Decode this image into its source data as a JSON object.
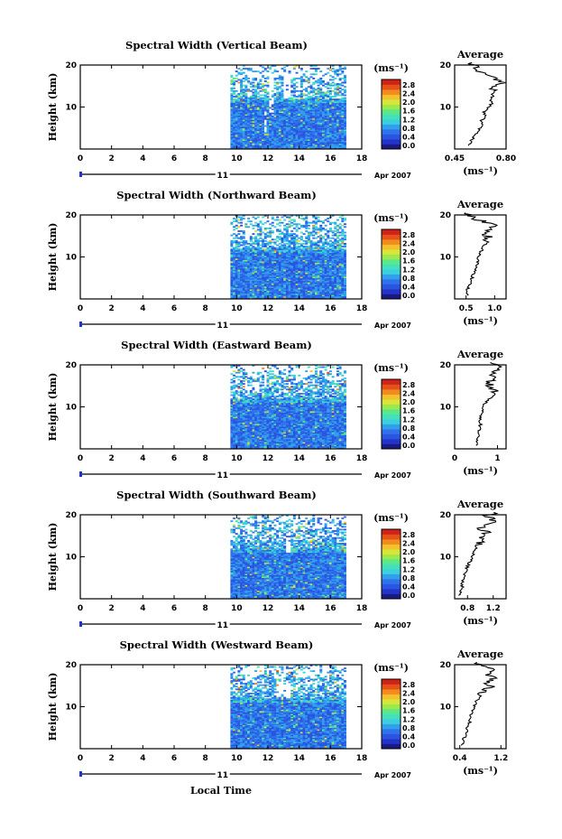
{
  "chart_data": [
    {
      "type": "heatmap",
      "title": "Spectral Width (Vertical Beam)",
      "ylabel": "Height (km)",
      "xticks": [
        "0",
        "2",
        "4",
        "6",
        "8",
        "10",
        "12",
        "14",
        "16",
        "18"
      ],
      "yticks": [
        "10",
        "20"
      ],
      "xlim": [
        0,
        18
      ],
      "ylim": [
        0,
        20
      ],
      "data_x_range": [
        9.6,
        17
      ],
      "day_label": "11",
      "date_label": "Apr 2007",
      "colorbar": {
        "unit": "(ms⁻¹)",
        "ticks": [
          "2.8",
          "2.4",
          "2.0",
          "1.6",
          "1.2",
          "0.8",
          "0.4",
          "0.0"
        ]
      },
      "gaps": [
        {
          "x": [
            10.8,
            11.4
          ],
          "y": [
            17,
            18
          ]
        },
        {
          "x": [
            12.1,
            12.4
          ],
          "y": [
            8,
            18
          ]
        },
        {
          "x": [
            13.0,
            13.4
          ],
          "y": [
            12,
            18
          ]
        },
        {
          "x": [
            11.7,
            11.9
          ],
          "y": [
            4,
            9
          ]
        }
      ],
      "profile": {
        "title": "Average",
        "xlabel": "(ms⁻¹)",
        "xticks": [
          "0.45",
          "0.80"
        ],
        "xlim": [
          0.45,
          0.8
        ],
        "yticks": [
          "10",
          "20"
        ],
        "values": [
          0.55,
          0.56,
          0.58,
          0.6,
          0.62,
          0.64,
          0.63,
          0.66,
          0.65,
          0.68,
          0.7,
          0.69,
          0.72,
          0.74,
          0.7,
          0.78,
          0.72,
          0.66,
          0.6,
          0.58,
          0.56
        ]
      }
    },
    {
      "type": "heatmap",
      "title": "Spectral Width (Northward Beam)",
      "ylabel": "Height (km)",
      "xticks": [
        "0",
        "2",
        "4",
        "6",
        "8",
        "10",
        "12",
        "14",
        "16",
        "18"
      ],
      "yticks": [
        "10",
        "20"
      ],
      "xlim": [
        0,
        18
      ],
      "ylim": [
        0,
        20
      ],
      "data_x_range": [
        9.6,
        17
      ],
      "day_label": "11",
      "date_label": "Apr 2007",
      "colorbar": {
        "unit": "(ms⁻¹)",
        "ticks": [
          "2.8",
          "2.4",
          "2.0",
          "1.6",
          "1.2",
          "0.8",
          "0.4",
          "0.0"
        ]
      },
      "gaps": [
        {
          "x": [
            10.5,
            11.0
          ],
          "y": [
            14,
            17
          ]
        }
      ],
      "profile": {
        "title": "Average",
        "xlabel": "(ms⁻¹)",
        "xticks": [
          "0.5",
          "1.0"
        ],
        "xlim": [
          0.3,
          1.2
        ],
        "yticks": [
          "10",
          "20"
        ],
        "values": [
          0.52,
          0.5,
          0.55,
          0.58,
          0.6,
          0.62,
          0.65,
          0.68,
          0.7,
          0.72,
          0.74,
          0.78,
          0.8,
          0.85,
          0.9,
          0.82,
          0.95,
          1.0,
          0.7,
          0.55,
          0.48
        ]
      }
    },
    {
      "type": "heatmap",
      "title": "Spectral Width (Eastward Beam)",
      "ylabel": "Height (km)",
      "xticks": [
        "0",
        "2",
        "4",
        "6",
        "8",
        "10",
        "12",
        "14",
        "16",
        "18"
      ],
      "yticks": [
        "10",
        "20"
      ],
      "xlim": [
        0,
        18
      ],
      "ylim": [
        0,
        20
      ],
      "data_x_range": [
        9.6,
        17
      ],
      "day_label": "11",
      "date_label": "Apr 2007",
      "colorbar": {
        "unit": "(ms⁻¹)",
        "ticks": [
          "2.8",
          "2.4",
          "2.0",
          "1.6",
          "1.2",
          "0.8",
          "0.4",
          "0.0"
        ]
      },
      "gaps": [
        {
          "x": [
            10.6,
            11.4
          ],
          "y": [
            14,
            16
          ]
        }
      ],
      "profile": {
        "title": "Average",
        "xlabel": "(ms⁻¹)",
        "xticks": [
          "0",
          "1"
        ],
        "xlim": [
          0,
          1.2
        ],
        "yticks": [
          "10",
          "20"
        ],
        "values": [
          0.5,
          0.52,
          0.55,
          0.55,
          0.58,
          0.6,
          0.58,
          0.62,
          0.65,
          0.66,
          0.7,
          0.8,
          0.9,
          0.95,
          0.85,
          0.8,
          0.9,
          0.85,
          0.95,
          1.0,
          0.8
        ]
      }
    },
    {
      "type": "heatmap",
      "title": "Spectral Width (Southward Beam)",
      "ylabel": "Height (km)",
      "xticks": [
        "0",
        "2",
        "4",
        "6",
        "8",
        "10",
        "12",
        "14",
        "16",
        "18"
      ],
      "yticks": [
        "10",
        "20"
      ],
      "xlim": [
        0,
        18
      ],
      "ylim": [
        0,
        20
      ],
      "data_x_range": [
        9.6,
        17
      ],
      "day_label": "11",
      "date_label": "Apr 2007",
      "colorbar": {
        "unit": "(ms⁻¹)",
        "ticks": [
          "2.8",
          "2.4",
          "2.0",
          "1.6",
          "1.2",
          "0.8",
          "0.4",
          "0.0"
        ]
      },
      "gaps": [
        {
          "x": [
            13.2,
            13.5
          ],
          "y": [
            11,
            16
          ]
        }
      ],
      "profile": {
        "title": "Average",
        "xlabel": "(ms⁻¹)",
        "xticks": [
          "0.8",
          "1.2"
        ],
        "xlim": [
          0.6,
          1.4
        ],
        "yticks": [
          "10",
          "20"
        ],
        "values": [
          0.68,
          0.7,
          0.72,
          0.72,
          0.74,
          0.76,
          0.78,
          0.8,
          0.84,
          0.86,
          0.9,
          0.92,
          0.95,
          1.0,
          1.05,
          1.1,
          1.0,
          1.15,
          1.2,
          1.1,
          1.3
        ]
      }
    },
    {
      "type": "heatmap",
      "title": "Spectral Width (Westward Beam)",
      "ylabel": "Height (km)",
      "xticks": [
        "0",
        "2",
        "4",
        "6",
        "8",
        "10",
        "12",
        "14",
        "16",
        "18"
      ],
      "yticks": [
        "10",
        "20"
      ],
      "xlim": [
        0,
        18
      ],
      "ylim": [
        0,
        20
      ],
      "data_x_range": [
        9.6,
        17
      ],
      "day_label": "11",
      "date_label": "Apr 2007",
      "colorbar": {
        "unit": "(ms⁻¹)",
        "ticks": [
          "2.8",
          "2.4",
          "2.0",
          "1.6",
          "1.2",
          "0.8",
          "0.4",
          "0.0"
        ]
      },
      "gaps": [
        {
          "x": [
            12.6,
            13.4
          ],
          "y": [
            12,
            16
          ]
        }
      ],
      "profile": {
        "title": "Average",
        "xlabel": "(ms⁻¹)",
        "xticks": [
          "0.4",
          "1.2"
        ],
        "xlim": [
          0.3,
          1.3
        ],
        "yticks": [
          "10",
          "20"
        ],
        "values": [
          0.45,
          0.46,
          0.5,
          0.52,
          0.55,
          0.58,
          0.6,
          0.62,
          0.65,
          0.68,
          0.7,
          0.75,
          0.8,
          0.9,
          1.0,
          0.95,
          1.05,
          0.9,
          1.1,
          0.85,
          0.7
        ]
      }
    }
  ],
  "xaxis_label": "Local Time",
  "colors": {
    "frame": "#000000",
    "colormap": [
      "#1a1a80",
      "#2433c9",
      "#2a55e0",
      "#2f72ec",
      "#31a0ea",
      "#3ccfe0",
      "#44e0bc",
      "#5be88a",
      "#9fe84b",
      "#d7e63a",
      "#f4c02d",
      "#f28a1e",
      "#e4521a",
      "#d02318"
    ]
  }
}
